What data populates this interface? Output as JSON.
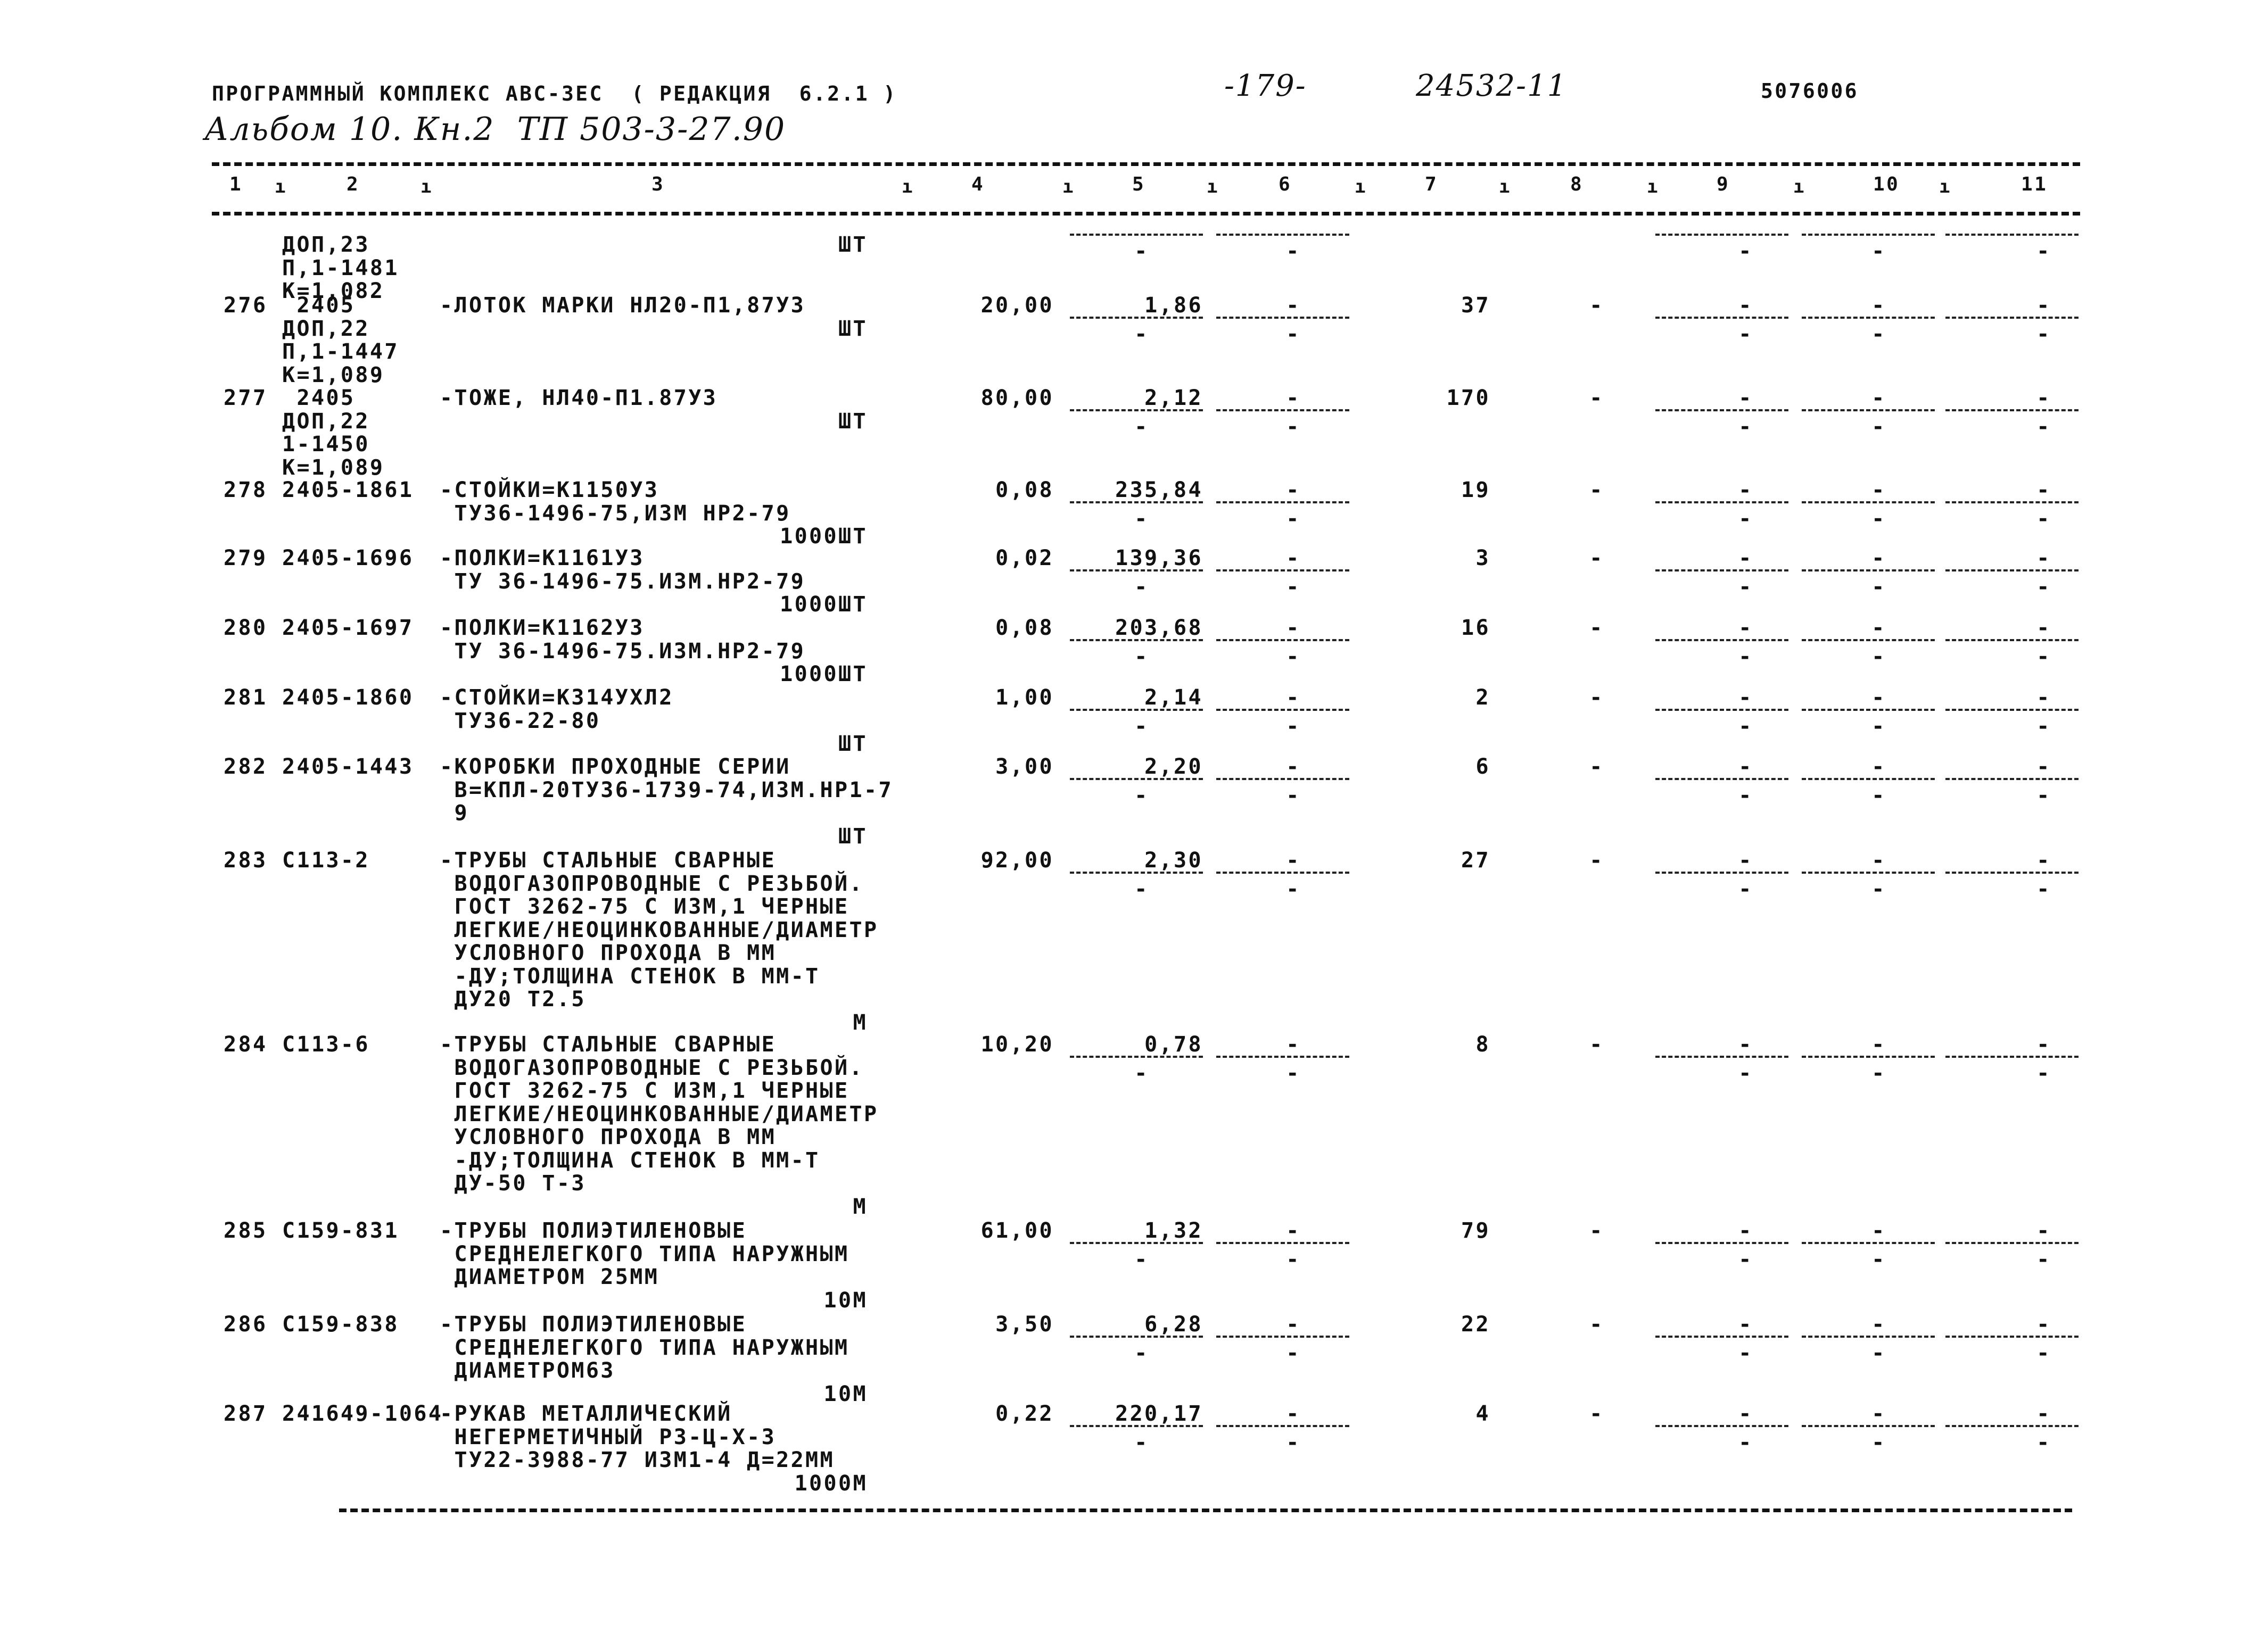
{
  "header": {
    "program": "ПРОГРАММНЫЙ КОМПЛЕКС АВС-3ЕС  ( РЕДАКЦИЯ  6.2.1 )",
    "page": "-179-",
    "doc_code": "24532-11",
    "code": "5076006",
    "album": "Альбом 10. Кн.2  ТП 503-3-27.90"
  },
  "columns": [
    "1",
    "2",
    "3",
    "4",
    "5",
    "6",
    "7",
    "8",
    "9",
    "10",
    "11"
  ],
  "items": [
    {
      "num": "",
      "code": [
        "ДОП,23",
        "П,1-1481",
        "К=1,082"
      ],
      "desc": [],
      "unit": "ШТ",
      "c4": "",
      "c5": "",
      "c6": "",
      "c7": "",
      "c8": "",
      "c9": "",
      "c10": "",
      "c11": "",
      "sub": [
        "-",
        "-",
        "-",
        "-",
        "-"
      ]
    },
    {
      "num": "276",
      "code": [
        " 2405",
        "ДОП,22",
        "П,1-1447",
        "К=1,089"
      ],
      "desc": [
        "-ЛОТОК МАРКИ НЛ20-П1,87У3"
      ],
      "unit": "ШТ",
      "c4": "20,00",
      "c5": "1,86",
      "c6": "-",
      "c7": "37",
      "c8": "-",
      "c9": "-",
      "c10": "-",
      "c11": "-",
      "sub": [
        "-",
        "-",
        "-",
        "-",
        "-"
      ]
    },
    {
      "num": "277",
      "code": [
        " 2405",
        "ДОП,22",
        "1-1450",
        "К=1,089"
      ],
      "desc": [
        "-ТОЖЕ, НЛ40-П1.87У3"
      ],
      "unit": "ШТ",
      "c4": "80,00",
      "c5": "2,12",
      "c6": "-",
      "c7": "170",
      "c8": "-",
      "c9": "-",
      "c10": "-",
      "c11": "-",
      "sub": [
        "-",
        "-",
        "-",
        "-",
        "-"
      ]
    },
    {
      "num": "278",
      "code": [
        "2405-1861"
      ],
      "desc": [
        "-СТОЙКИ=К1150У3",
        " ТУ36-1496-75,ИЗМ НР2-79"
      ],
      "unit": "1000ШТ",
      "c4": "0,08",
      "c5": "235,84",
      "c6": "-",
      "c7": "19",
      "c8": "-",
      "c9": "-",
      "c10": "-",
      "c11": "-",
      "sub": [
        "-",
        "-",
        "-",
        "-",
        "-"
      ]
    },
    {
      "num": "279",
      "code": [
        "2405-1696"
      ],
      "desc": [
        "-ПОЛКИ=К1161У3",
        " ТУ 36-1496-75.ИЗМ.НР2-79"
      ],
      "unit": "1000ШТ",
      "c4": "0,02",
      "c5": "139,36",
      "c6": "-",
      "c7": "3",
      "c8": "-",
      "c9": "-",
      "c10": "-",
      "c11": "-",
      "sub": [
        "-",
        "-",
        "-",
        "-",
        "-"
      ]
    },
    {
      "num": "280",
      "code": [
        "2405-1697"
      ],
      "desc": [
        "-ПОЛКИ=К1162У3",
        " ТУ 36-1496-75.ИЗМ.НР2-79"
      ],
      "unit": "1000ШТ",
      "c4": "0,08",
      "c5": "203,68",
      "c6": "-",
      "c7": "16",
      "c8": "-",
      "c9": "-",
      "c10": "-",
      "c11": "-",
      "sub": [
        "-",
        "-",
        "-",
        "-",
        "-"
      ]
    },
    {
      "num": "281",
      "code": [
        "2405-1860"
      ],
      "desc": [
        "-СТОЙКИ=К314УХЛ2",
        " ТУ36-22-80"
      ],
      "unit": "ШТ",
      "c4": "1,00",
      "c5": "2,14",
      "c6": "-",
      "c7": "2",
      "c8": "-",
      "c9": "-",
      "c10": "-",
      "c11": "-",
      "sub": [
        "-",
        "-",
        "-",
        "-",
        "-"
      ]
    },
    {
      "num": "282",
      "code": [
        "2405-1443"
      ],
      "desc": [
        "-КОРОБКИ ПРОХОДНЫЕ СЕРИИ",
        " В=КПЛ-20ТУ36-1739-74,ИЗМ.НР1-7",
        " 9"
      ],
      "unit": "ШТ",
      "c4": "3,00",
      "c5": "2,20",
      "c6": "-",
      "c7": "6",
      "c8": "-",
      "c9": "-",
      "c10": "-",
      "c11": "-",
      "sub": [
        "-",
        "-",
        "-",
        "-",
        "-"
      ]
    },
    {
      "num": "283",
      "code": [
        "С113-2"
      ],
      "desc": [
        "-ТРУБЫ СТАЛЬНЫЕ СВАРНЫЕ",
        " ВОДОГАЗОПРОВОДНЫЕ С РЕЗЬБОЙ.",
        " ГОСТ 3262-75 С ИЗМ,1 ЧЕРНЫЕ",
        " ЛЕГКИЕ/НЕОЦИНКОВАННЫЕ/ДИАМЕТР",
        " УСЛОВНОГО ПРОХОДА В ММ",
        " -ДУ;ТОЛЩИНА СТЕНОК В ММ-Т",
        " ДУ20 Т2.5"
      ],
      "unit": "М",
      "c4": "92,00",
      "c5": "2,30",
      "c6": "-",
      "c7": "27",
      "c8": "-",
      "c9": "-",
      "c10": "-",
      "c11": "-",
      "sub": [
        "-",
        "-",
        "-",
        "-",
        "-"
      ]
    },
    {
      "num": "284",
      "code": [
        "С113-6"
      ],
      "desc": [
        "-ТРУБЫ СТАЛЬНЫЕ СВАРНЫЕ",
        " ВОДОГАЗОПРОВОДНЫЕ С РЕЗЬБОЙ.",
        " ГОСТ 3262-75 С ИЗМ,1 ЧЕРНЫЕ",
        " ЛЕГКИЕ/НЕОЦИНКОВАННЫЕ/ДИАМЕТР",
        " УСЛОВНОГО ПРОХОДА В ММ",
        " -ДУ;ТОЛЩИНА СТЕНОК В ММ-Т",
        " ДУ-50 Т-3"
      ],
      "unit": "М",
      "c4": "10,20",
      "c5": "0,78",
      "c6": "-",
      "c7": "8",
      "c8": "-",
      "c9": "-",
      "c10": "-",
      "c11": "-",
      "sub": [
        "-",
        "-",
        "-",
        "-",
        "-"
      ]
    },
    {
      "num": "285",
      "code": [
        "С159-831"
      ],
      "desc": [
        "-ТРУБЫ ПОЛИЭТИЛЕНОВЫЕ",
        " СРЕДНЕЛЕГКОГО ТИПА НАРУЖНЫМ",
        " ДИАМЕТРОМ 25ММ"
      ],
      "unit": "10М",
      "c4": "61,00",
      "c5": "1,32",
      "c6": "-",
      "c7": "79",
      "c8": "-",
      "c9": "-",
      "c10": "-",
      "c11": "-",
      "sub": [
        "-",
        "-",
        "-",
        "-",
        "-"
      ]
    },
    {
      "num": "286",
      "code": [
        "С159-838"
      ],
      "desc": [
        "-ТРУБЫ ПОЛИЭТИЛЕНОВЫЕ",
        " СРЕДНЕЛЕГКОГО ТИПА НАРУЖНЫМ",
        " ДИАМЕТРОМ63"
      ],
      "unit": "10М",
      "c4": "3,50",
      "c5": "6,28",
      "c6": "-",
      "c7": "22",
      "c8": "-",
      "c9": "-",
      "c10": "-",
      "c11": "-",
      "sub": [
        "-",
        "-",
        "-",
        "-",
        "-"
      ]
    },
    {
      "num": "287",
      "code": [
        "241649-1064"
      ],
      "desc": [
        "-РУКАВ МЕТАЛЛИЧЕСКИЙ",
        " НЕГЕРМЕТИЧНЫЙ РЗ-Ц-Х-3",
        " ТУ22-3988-77 ИЗМ1-4 Д=22ММ"
      ],
      "unit": "1000М",
      "c4": "0,22",
      "c5": "220,17",
      "c6": "-",
      "c7": "4",
      "c8": "-",
      "c9": "-",
      "c10": "-",
      "c11": "-",
      "sub": [
        "-",
        "-",
        "-",
        "-",
        "-"
      ]
    }
  ]
}
